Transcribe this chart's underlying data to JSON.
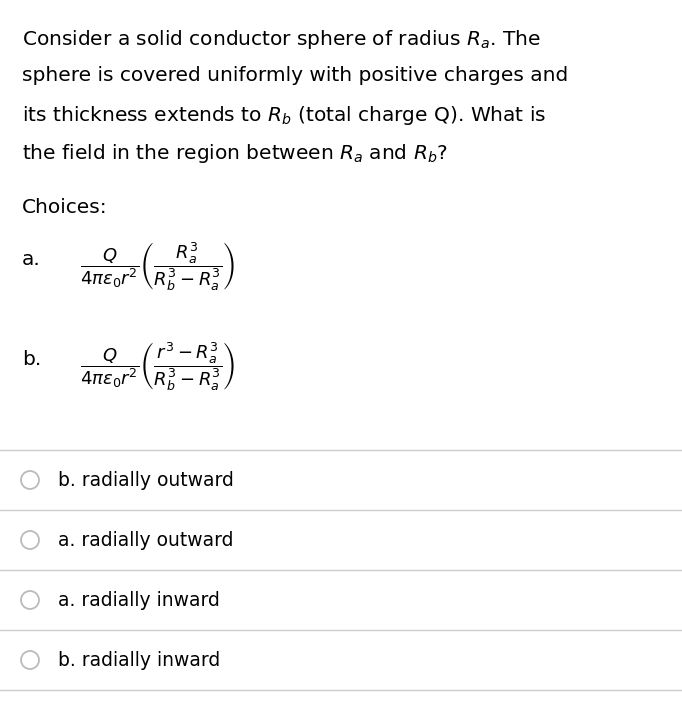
{
  "background_color": "#ffffff",
  "text_color": "#000000",
  "question_lines": [
    "Consider a solid conductor sphere of radius $R_a$. The",
    "sphere is covered uniformly with positive charges and",
    "its thickness extends to $R_b$ (total charge Q). What is",
    "the field in the region between $R_a$ and $R_b$?"
  ],
  "choices_label": "Choices:",
  "choice_a_label": "a.",
  "choice_b_label": "b.",
  "choice_a_formula": "$\\dfrac{Q}{4\\pi\\epsilon_0 r^2}\\left(\\dfrac{R_a^3}{R_b^3-R_a^3}\\right)$",
  "choice_b_formula": "$\\dfrac{Q}{4\\pi\\epsilon_0 r^2}\\left(\\dfrac{r^3-R_a^3}{R_b^3-R_a^3}\\right)$",
  "answer_options": [
    "b. radially outward",
    "a. radially outward",
    "a. radially inward",
    "b. radially inward"
  ],
  "separator_color": "#cccccc",
  "circle_color": "#bbbbbb",
  "font_size_question": 14.5,
  "font_size_choices_label": 14.5,
  "font_size_choice_label": 14.5,
  "font_size_formula": 13,
  "font_size_answers": 13.5
}
